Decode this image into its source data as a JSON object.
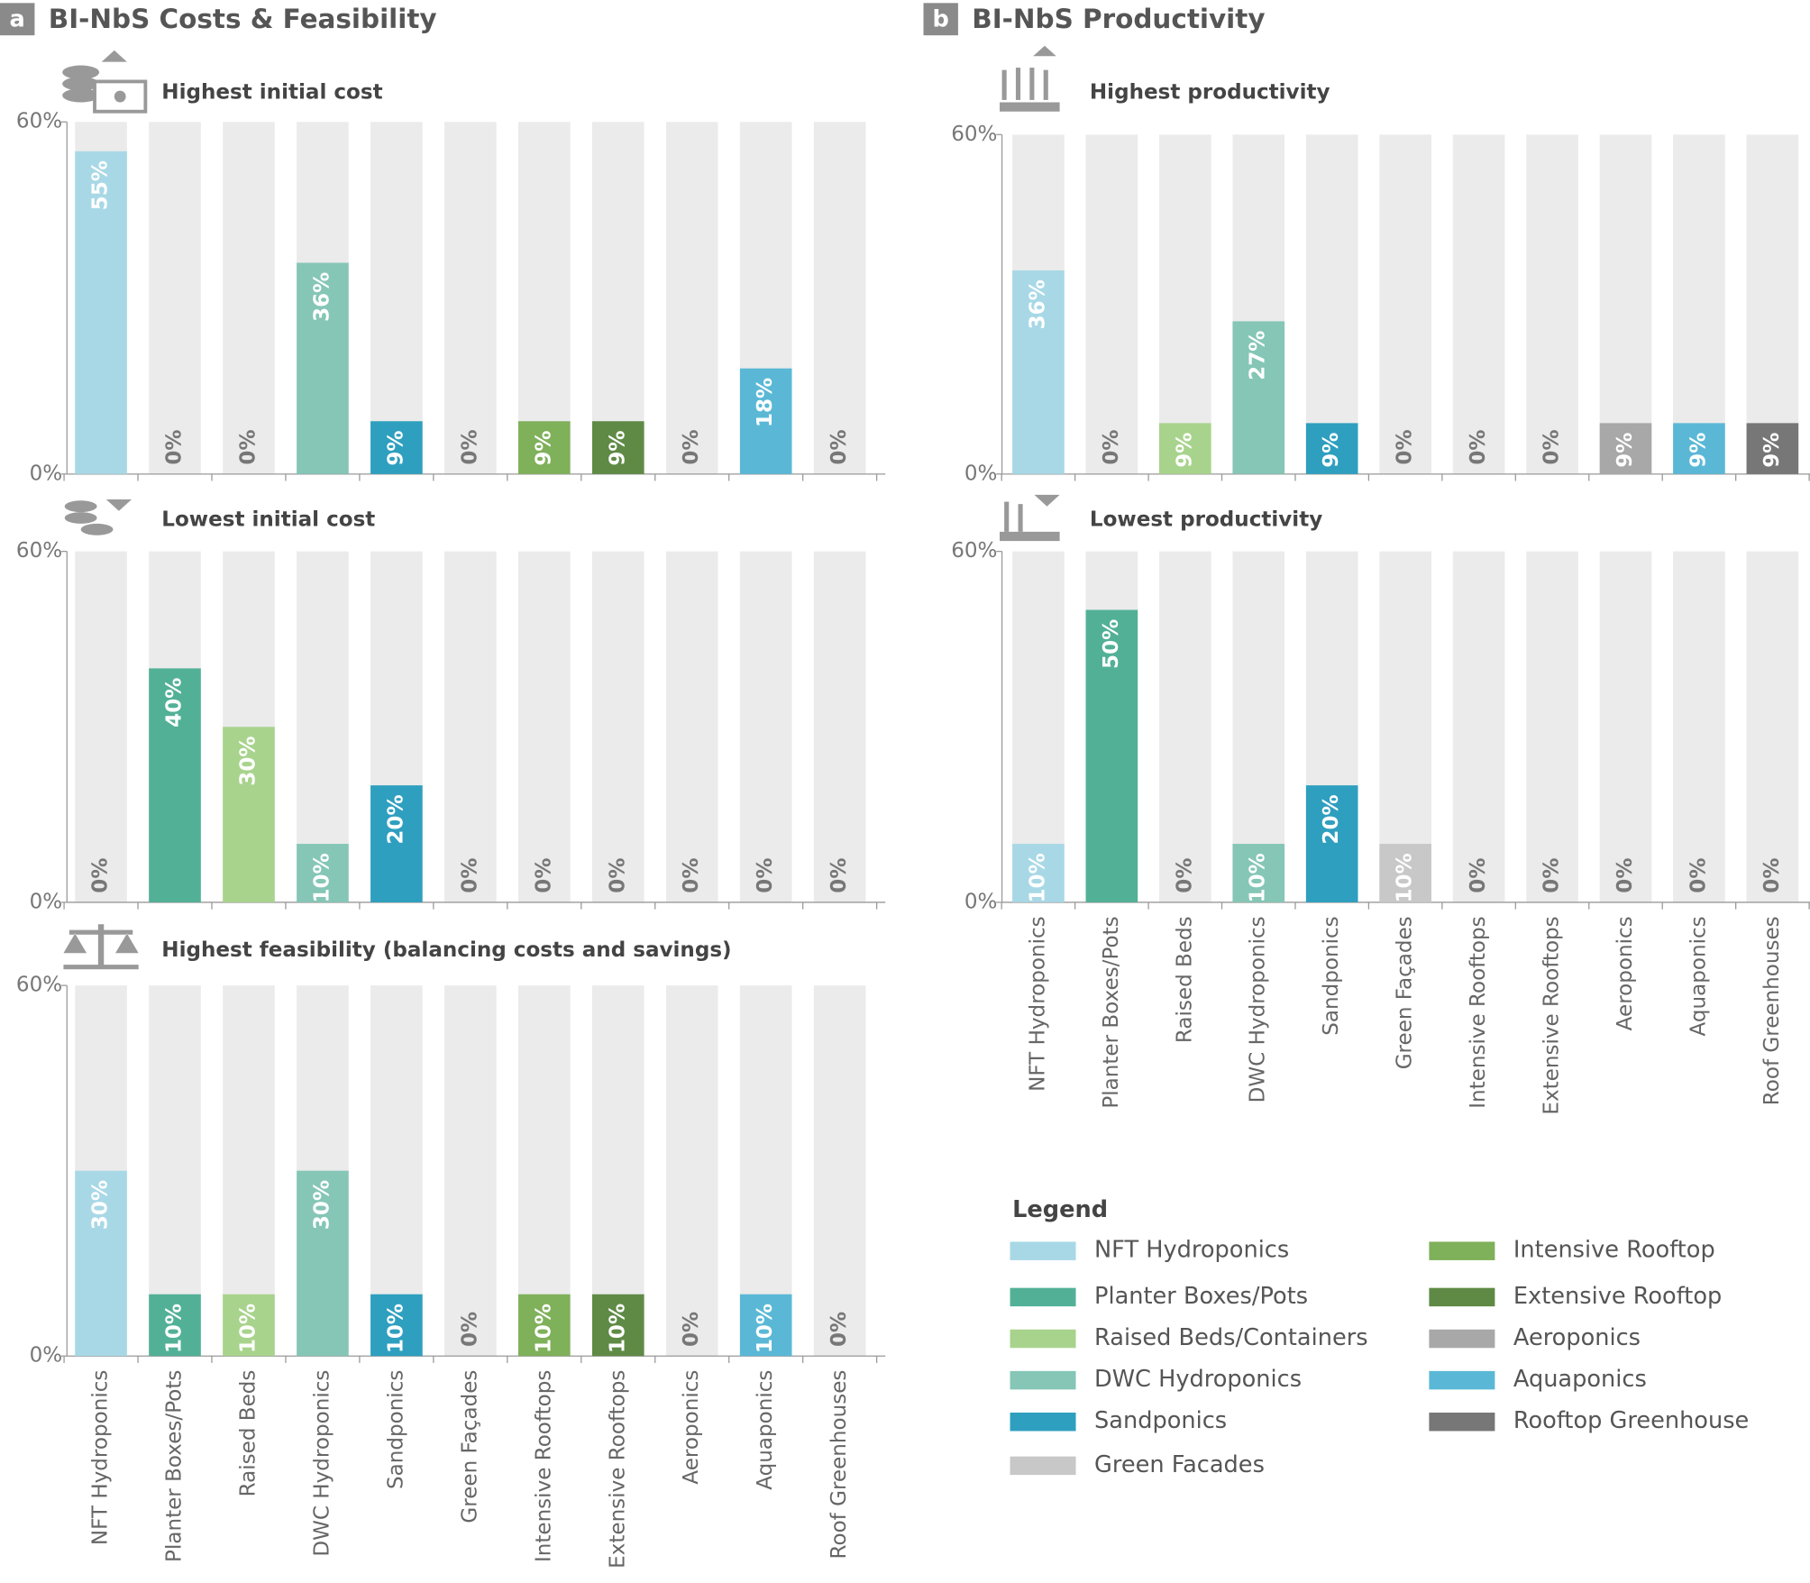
{
  "panels": [
    {
      "letter": "a",
      "title": "BI-NbS Costs & Feasibility"
    },
    {
      "letter": "b",
      "title": "BI-NbS Productivity"
    }
  ],
  "chart_data": [
    {
      "type": "bar",
      "title": "Highest initial cost",
      "values": [
        55,
        0,
        0,
        36,
        9,
        0,
        9,
        9,
        0,
        18,
        0
      ],
      "value_labels": [
        "55%",
        "0%",
        "0%",
        "36%",
        "9%",
        "0%",
        "9%",
        "9%",
        "0%",
        "18%",
        "0%"
      ],
      "colors": [
        "#a8d8e6",
        "#52b096",
        "#a8d38c",
        "#85c6b6",
        "#2e9fbf",
        "#c8c8c8",
        "#7fb05a",
        "#5f8a45",
        "#a8a8a8",
        "#5ab8d6",
        "#777777"
      ],
      "ylim": [
        0,
        60
      ],
      "yticks": [
        {
          "value": 0,
          "label": "0%"
        },
        {
          "value": 60,
          "label": "60%"
        }
      ]
    },
    {
      "type": "bar",
      "title": "Lowest initial cost",
      "values": [
        0,
        40,
        30,
        10,
        20,
        0,
        0,
        0,
        0,
        0,
        0
      ],
      "value_labels": [
        "0%",
        "40%",
        "30%",
        "10%",
        "20%",
        "0%",
        "0%",
        "0%",
        "0%",
        "0%",
        "0%"
      ],
      "colors": [
        "#a8d8e6",
        "#52b096",
        "#a8d38c",
        "#85c6b6",
        "#2e9fbf",
        "#c8c8c8",
        "#7fb05a",
        "#5f8a45",
        "#a8a8a8",
        "#5ab8d6",
        "#777777"
      ],
      "ylim": [
        0,
        60
      ],
      "yticks": [
        {
          "value": 0,
          "label": "0%"
        },
        {
          "value": 60,
          "label": "60%"
        }
      ]
    },
    {
      "type": "bar",
      "title": "Highest feasibility (balancing costs and savings)",
      "categories": [
        "NFT Hydroponics",
        "Planter Boxes/Pots",
        "Raised Beds",
        "DWC Hydroponics",
        "Sandponics",
        "Green Façades",
        "Intensive Rooftops",
        "Extensive Rooftops",
        "Aeroponics",
        "Aquaponics",
        "Roof Greenhouses"
      ],
      "values": [
        30,
        10,
        10,
        30,
        10,
        0,
        10,
        10,
        0,
        10,
        0
      ],
      "value_labels": [
        "30%",
        "10%",
        "10%",
        "30%",
        "10%",
        "0%",
        "10%",
        "10%",
        "0%",
        "10%",
        "0%"
      ],
      "colors": [
        "#a8d8e6",
        "#52b096",
        "#a8d38c",
        "#85c6b6",
        "#2e9fbf",
        "#c8c8c8",
        "#7fb05a",
        "#5f8a45",
        "#a8a8a8",
        "#5ab8d6",
        "#777777"
      ],
      "ylim": [
        0,
        60
      ],
      "yticks": [
        {
          "value": 0,
          "label": "0%"
        },
        {
          "value": 60,
          "label": "60%"
        }
      ]
    },
    {
      "type": "bar",
      "title": "Highest productivity",
      "values": [
        36,
        0,
        9,
        27,
        9,
        0,
        0,
        0,
        9,
        9,
        9
      ],
      "value_labels": [
        "36%",
        "0%",
        "9%",
        "27%",
        "9%",
        "0%",
        "0%",
        "0%",
        "9%",
        "9%",
        "9%"
      ],
      "colors": [
        "#a8d8e6",
        "#52b096",
        "#a8d38c",
        "#85c6b6",
        "#2e9fbf",
        "#c8c8c8",
        "#7fb05a",
        "#5f8a45",
        "#a8a8a8",
        "#5ab8d6",
        "#777777"
      ],
      "ylim": [
        0,
        60
      ],
      "yticks": [
        {
          "value": 0,
          "label": "0%"
        },
        {
          "value": 60,
          "label": "60%"
        }
      ]
    },
    {
      "type": "bar",
      "title": "Lowest productivity",
      "categories": [
        "NFT Hydroponics",
        "Planter Boxes/Pots",
        "Raised Beds",
        "DWC Hydroponics",
        "Sandponics",
        "Green Façades",
        "Intensive Rooftops",
        "Extensive Rooftops",
        "Aeroponics",
        "Aquaponics",
        "Roof Greenhouses"
      ],
      "values": [
        10,
        50,
        0,
        10,
        20,
        10,
        0,
        0,
        0,
        0,
        0
      ],
      "value_labels": [
        "10%",
        "50%",
        "0%",
        "10%",
        "20%",
        "10%",
        "0%",
        "0%",
        "0%",
        "0%",
        "0%"
      ],
      "colors": [
        "#a8d8e6",
        "#52b096",
        "#a8d38c",
        "#85c6b6",
        "#2e9fbf",
        "#c8c8c8",
        "#7fb05a",
        "#5f8a45",
        "#a8a8a8",
        "#5ab8d6",
        "#777777"
      ],
      "ylim": [
        0,
        60
      ],
      "yticks": [
        {
          "value": 0,
          "label": "0%"
        },
        {
          "value": 60,
          "label": "60%"
        }
      ]
    }
  ],
  "legend": {
    "title": "Legend",
    "items": [
      {
        "name": "NFT Hydroponics",
        "color": "#a8d8e6"
      },
      {
        "name": "Planter Boxes/Pots",
        "color": "#52b096"
      },
      {
        "name": "Raised Beds/Containers",
        "color": "#a8d38c"
      },
      {
        "name": "DWC Hydroponics",
        "color": "#85c6b6"
      },
      {
        "name": "Sandponics",
        "color": "#2e9fbf"
      },
      {
        "name": "Green Facades",
        "color": "#c8c8c8"
      },
      {
        "name": "Intensive Rooftop",
        "color": "#7fb05a"
      },
      {
        "name": "Extensive Rooftop",
        "color": "#5f8a45"
      },
      {
        "name": "Aeroponics",
        "color": "#a8a8a8"
      },
      {
        "name": "Aquaponics",
        "color": "#5ab8d6"
      },
      {
        "name": "Rooftop Greenhouse",
        "color": "#777777"
      }
    ]
  }
}
